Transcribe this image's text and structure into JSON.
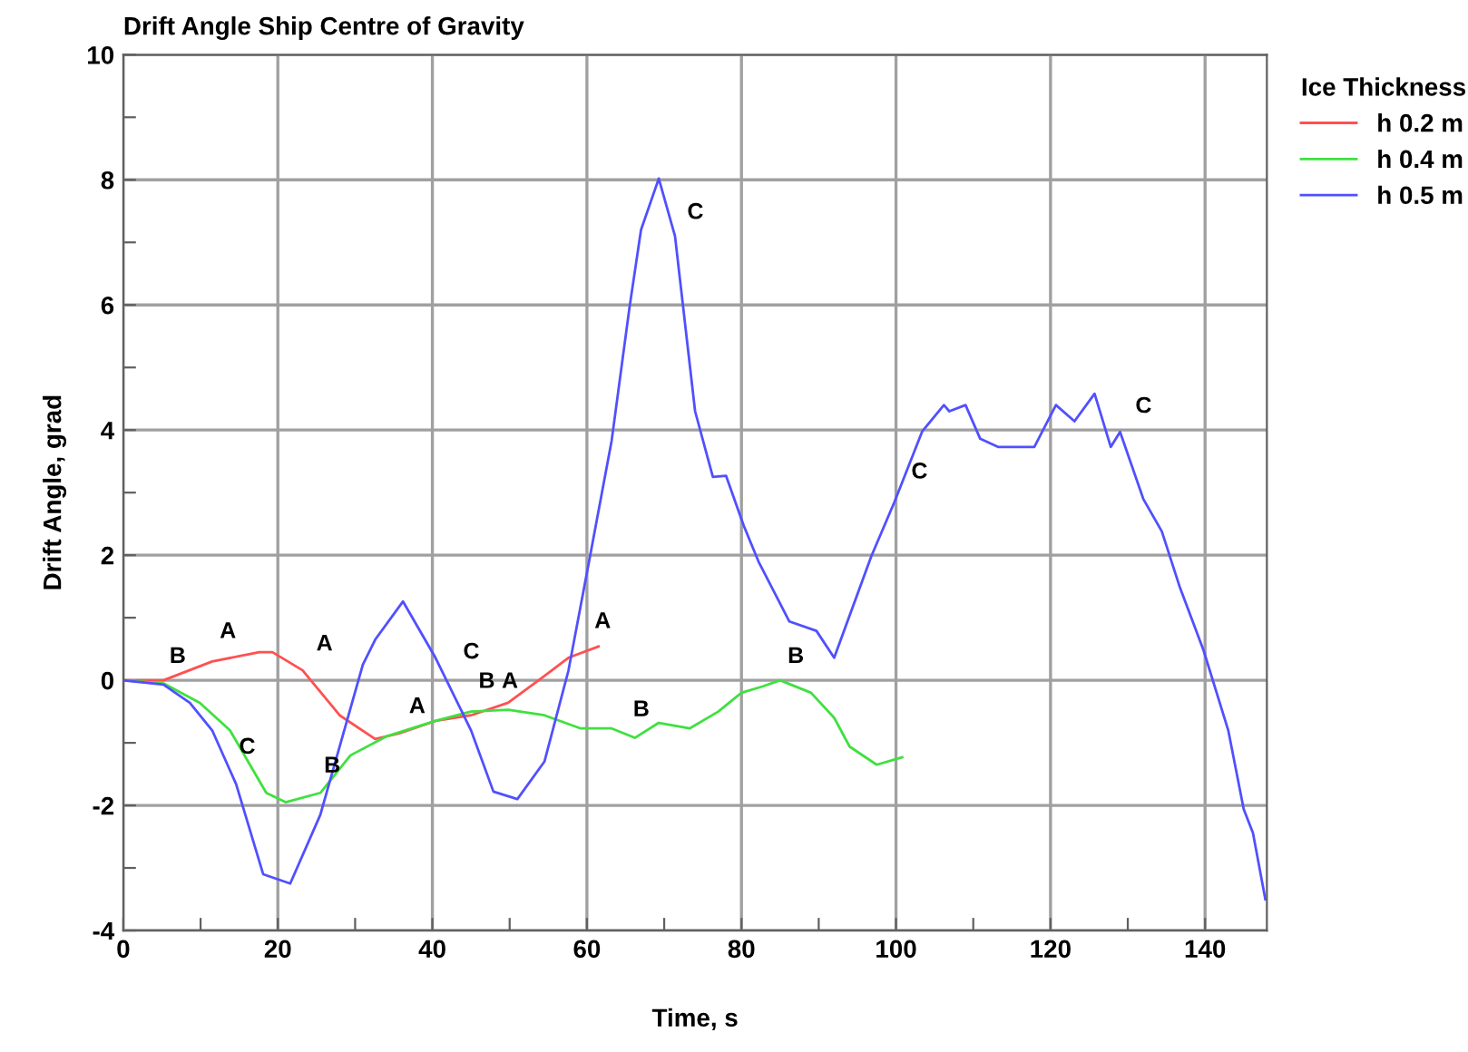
{
  "chart_data": {
    "type": "line",
    "title": "Drift Angle Ship Centre of Gravity",
    "xlabel": "Time, s",
    "ylabel": "Drift Angle, grad",
    "legend_title": "Ice Thickness",
    "legend": "top right",
    "grid": true,
    "marker": "none",
    "line_style": "solid",
    "xlim": [
      0,
      148
    ],
    "ylim": [
      -4,
      10
    ],
    "xticks": [
      0,
      {
        "value": 10,
        "label": null
      },
      20,
      {
        "value": 30,
        "label": null
      },
      40,
      {
        "value": 50,
        "label": null
      },
      60,
      {
        "value": 70,
        "label": null
      },
      80,
      {
        "value": 90,
        "label": null
      },
      100,
      {
        "value": 110,
        "label": null
      },
      120,
      {
        "value": 130,
        "label": null
      },
      140
    ],
    "yticks": [
      -4,
      {
        "value": -3,
        "label": null
      },
      -2,
      {
        "value": -1,
        "label": null
      },
      0,
      {
        "value": 1,
        "label": null
      },
      2,
      {
        "value": 3,
        "label": null
      },
      4,
      {
        "value": 5,
        "label": null
      },
      6,
      {
        "value": 7,
        "label": null
      },
      8,
      {
        "value": 9,
        "label": null
      },
      10
    ],
    "series": [
      {
        "name": "h 0.2 m",
        "color": "#ff5050",
        "x": [
          0,
          5.2,
          11.5,
          17.6,
          19.3,
          23.2,
          28,
          32.6,
          35.7,
          40.4,
          45,
          49.8,
          54.5,
          57.6,
          61.5
        ],
        "values": [
          0,
          0,
          0.3,
          0.45,
          0.45,
          0.16,
          -0.56,
          -0.94,
          -0.85,
          -0.65,
          -0.56,
          -0.36,
          0.07,
          0.36,
          0.54
        ]
      },
      {
        "name": "h 0.4 m",
        "color": "#40e040",
        "x": [
          0,
          5.2,
          9.9,
          13.8,
          18.5,
          21,
          25.5,
          29.4,
          34,
          40.4,
          45,
          49.8,
          54.5,
          59.2,
          63.2,
          66.2,
          69.3,
          73.3,
          77,
          80,
          82.7,
          85,
          89,
          92,
          94,
          97.5,
          100.8
        ],
        "values": [
          0,
          -0.05,
          -0.36,
          -0.8,
          -1.8,
          -1.95,
          -1.8,
          -1.2,
          -0.9,
          -0.65,
          -0.5,
          -0.47,
          -0.56,
          -0.77,
          -0.77,
          -0.92,
          -0.68,
          -0.77,
          -0.5,
          -0.2,
          -0.1,
          0,
          -0.2,
          -0.6,
          -1.06,
          -1.35,
          -1.23
        ]
      },
      {
        "name": "h 0.5 m",
        "color": "#5050ff",
        "x": [
          0,
          5.2,
          8.6,
          11.5,
          14.6,
          18.1,
          21.6,
          25.5,
          31,
          32.6,
          36.2,
          40.4,
          45,
          47.9,
          51,
          54.5,
          57.6,
          60.4,
          63.2,
          65.5,
          67,
          69.3,
          71.4,
          74,
          76.3,
          78,
          80.3,
          82.2,
          86.2,
          89.7,
          92,
          96.8,
          99.8,
          103.4,
          106.2,
          106.9,
          109,
          110.9,
          113.2,
          117.9,
          120.7,
          123.1,
          125.7,
          127.8,
          129,
          132,
          134.4,
          136.7,
          139.8,
          143,
          145,
          146.2,
          147.8
        ],
        "values": [
          0,
          -0.07,
          -0.36,
          -0.8,
          -1.66,
          -3.1,
          -3.25,
          -2.15,
          0.25,
          0.65,
          1.26,
          0.36,
          -0.8,
          -1.78,
          -1.9,
          -1.3,
          0.15,
          1.98,
          3.83,
          5.95,
          7.2,
          8.02,
          7.1,
          4.3,
          3.25,
          3.27,
          2.47,
          1.9,
          0.94,
          0.79,
          0.36,
          1.98,
          2.85,
          3.98,
          4.4,
          4.3,
          4.4,
          3.86,
          3.73,
          3.73,
          4.4,
          4.14,
          4.58,
          3.73,
          3.97,
          2.9,
          2.38,
          1.5,
          0.48,
          -0.8,
          -2.06,
          -2.44,
          -3.5
        ]
      }
    ],
    "annotations": [
      {
        "text": "A",
        "x": 11.5,
        "y": 0.4
      },
      {
        "text": "A",
        "x": 24,
        "y": 0.2
      },
      {
        "text": "A",
        "x": 36,
        "y": -0.8
      },
      {
        "text": "A",
        "x": 48,
        "y": -0.4
      },
      {
        "text": "A",
        "x": 60,
        "y": 0.56
      },
      {
        "text": "B",
        "x": 5,
        "y": 0
      },
      {
        "text": "B",
        "x": 25,
        "y": -1.75
      },
      {
        "text": "B",
        "x": 45,
        "y": -0.4
      },
      {
        "text": "B",
        "x": 65,
        "y": -0.85
      },
      {
        "text": "B",
        "x": 85,
        "y": 0
      },
      {
        "text": "C",
        "x": 14,
        "y": -1.45
      },
      {
        "text": "C",
        "x": 43,
        "y": 0.07
      },
      {
        "text": "C",
        "x": 72,
        "y": 7.1
      },
      {
        "text": "C",
        "x": 101,
        "y": 2.95
      },
      {
        "text": "C",
        "x": 130,
        "y": 4.0
      }
    ]
  }
}
